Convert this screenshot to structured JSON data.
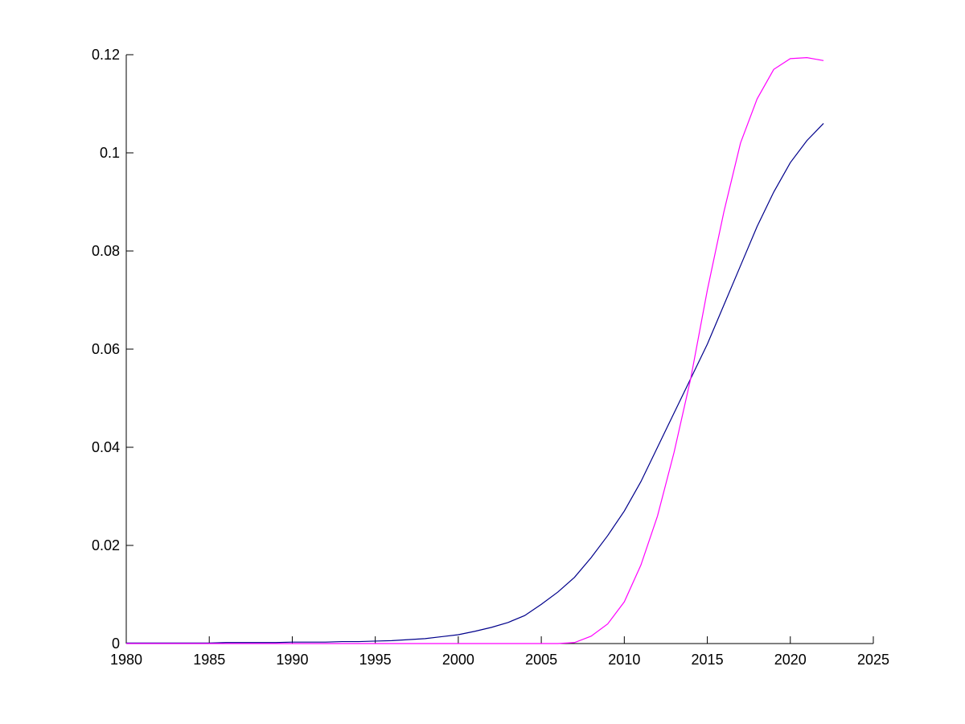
{
  "chart_data": {
    "type": "line",
    "x": [
      1980,
      1981,
      1982,
      1983,
      1984,
      1985,
      1986,
      1987,
      1988,
      1989,
      1990,
      1991,
      1992,
      1993,
      1994,
      1995,
      1996,
      1997,
      1998,
      1999,
      2000,
      2001,
      2002,
      2003,
      2004,
      2005,
      2006,
      2007,
      2008,
      2009,
      2010,
      2011,
      2012,
      2013,
      2014,
      2015,
      2016,
      2017,
      2018,
      2019,
      2020,
      2021,
      2022
    ],
    "series": [
      {
        "color": "#00008b",
        "values": [
          0.0001,
          0.0001,
          0.0001,
          0.0001,
          0.0001,
          0.0001,
          0.0002,
          0.0002,
          0.0002,
          0.0002,
          0.0003,
          0.0003,
          0.0003,
          0.0004,
          0.0004,
          0.0005,
          0.0006,
          0.0008,
          0.001,
          0.0014,
          0.0018,
          0.0025,
          0.0033,
          0.0043,
          0.0057,
          0.008,
          0.0105,
          0.0135,
          0.0175,
          0.022,
          0.027,
          0.033,
          0.04,
          0.047,
          0.054,
          0.061,
          0.069,
          0.077,
          0.085,
          0.092,
          0.098,
          0.1025,
          0.106
        ]
      },
      {
        "color": "#ff00ff",
        "values": [
          0,
          0,
          0,
          0,
          0,
          0,
          0,
          0,
          0,
          0,
          0,
          0,
          0,
          0,
          0,
          0,
          0,
          0,
          0,
          0,
          0,
          0,
          0,
          0,
          0,
          0,
          0,
          0.0002,
          0.0015,
          0.004,
          0.0085,
          0.016,
          0.026,
          0.039,
          0.054,
          0.072,
          0.088,
          0.102,
          0.111,
          0.117,
          0.1192,
          0.1194,
          0.1188
        ]
      }
    ],
    "xlim": [
      1980,
      2025
    ],
    "xticks": [
      1980,
      1985,
      1990,
      1995,
      2000,
      2005,
      2010,
      2015,
      2020,
      2025
    ],
    "ylim": [
      0,
      0.12
    ],
    "yticks": [
      0,
      0.02,
      0.04,
      0.06,
      0.08,
      0.1,
      0.12
    ]
  }
}
